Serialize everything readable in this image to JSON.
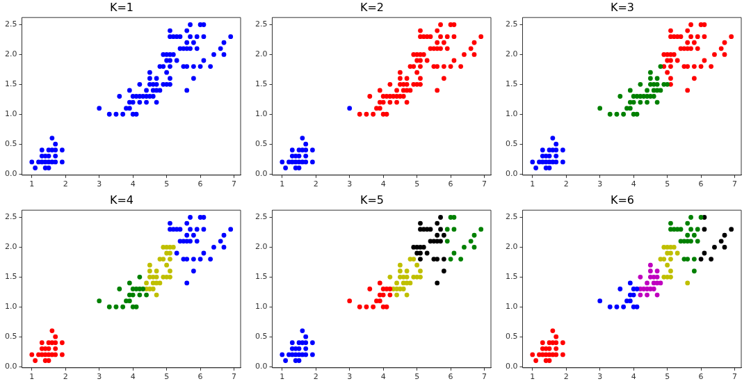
{
  "chart_data": [
    {
      "type": "scatter",
      "title": "K=1",
      "marker": "circle",
      "xlim": [
        0.705,
        7.195
      ],
      "xticks": [
        1,
        2,
        3,
        4,
        5,
        6,
        7
      ],
      "ylim": [
        -0.02,
        2.62
      ],
      "yticks": [
        {
          "value": 0,
          "label": "0.0"
        },
        {
          "value": 0.5,
          "label": "0.5"
        },
        {
          "value": 1,
          "label": "1.0"
        },
        {
          "value": 1.5,
          "label": "1.5"
        },
        {
          "value": 2,
          "label": "2.0"
        },
        {
          "value": 2.5,
          "label": "2.5"
        }
      ],
      "series": [
        {
          "color": "#0000ff",
          "x": [
            1.0,
            1.1,
            1.2,
            1.3,
            1.3,
            1.3,
            1.4,
            1.4,
            1.4,
            1.5,
            1.5,
            1.5,
            1.5,
            1.6,
            1.6,
            1.6,
            1.7,
            1.7,
            1.7,
            1.7,
            1.9,
            1.9,
            3.3,
            3.5,
            3.7,
            4.0,
            4.1,
            3.0,
            3.8,
            3.9,
            3.9,
            4.0,
            4.2,
            4.4,
            4.7,
            3.6,
            4.0,
            4.1,
            4.2,
            4.3,
            4.4,
            4.5,
            4.6,
            3.9,
            4.4,
            4.6,
            4.7,
            4.8,
            5.6,
            4.2,
            4.5,
            4.6,
            4.7,
            4.9,
            5.0,
            5.1,
            4.5,
            4.7,
            5.1,
            5.8,
            4.5,
            5.0,
            4.8,
            4.9,
            5.1,
            5.5,
            5.6,
            5.8,
            6.0,
            6.3,
            5.0,
            5.1,
            5.3,
            6.1,
            4.9,
            5.0,
            5.1,
            5.2,
            6.4,
            6.7,
            5.4,
            5.5,
            5.6,
            5.7,
            5.9,
            6.6,
            5.6,
            5.8,
            6.7,
            5.1,
            5.2,
            5.3,
            5.4,
            5.7,
            5.9,
            6.1,
            6.9,
            5.1,
            5.6,
            5.7,
            6.0,
            6.1
          ],
          "values": [
            0.2,
            0.1,
            0.2,
            0.2,
            0.3,
            0.4,
            0.1,
            0.2,
            0.3,
            0.1,
            0.2,
            0.3,
            0.4,
            0.2,
            0.4,
            0.6,
            0.2,
            0.3,
            0.4,
            0.5,
            0.2,
            0.4,
            1.0,
            1.0,
            1.0,
            1.0,
            1.0,
            1.1,
            1.1,
            1.1,
            1.2,
            1.2,
            1.2,
            1.2,
            1.2,
            1.3,
            1.3,
            1.3,
            1.3,
            1.3,
            1.3,
            1.3,
            1.3,
            1.4,
            1.4,
            1.4,
            1.4,
            1.4,
            1.4,
            1.5,
            1.5,
            1.5,
            1.5,
            1.5,
            1.5,
            1.5,
            1.6,
            1.6,
            1.6,
            1.6,
            1.7,
            1.7,
            1.8,
            1.8,
            1.8,
            1.8,
            1.8,
            1.8,
            1.8,
            1.8,
            1.9,
            1.9,
            1.9,
            1.9,
            2.0,
            2.0,
            2.0,
            2.0,
            2.0,
            2.0,
            2.1,
            2.1,
            2.1,
            2.1,
            2.1,
            2.1,
            2.2,
            2.2,
            2.2,
            2.3,
            2.3,
            2.3,
            2.3,
            2.3,
            2.3,
            2.3,
            2.3,
            2.4,
            2.4,
            2.5,
            2.5,
            2.5
          ]
        }
      ]
    },
    {
      "type": "scatter",
      "title": "K=2",
      "marker": "circle",
      "xlim": [
        0.705,
        7.195
      ],
      "xticks": [
        1,
        2,
        3,
        4,
        5,
        6,
        7
      ],
      "ylim": [
        -0.02,
        2.62
      ],
      "yticks": [
        {
          "value": 0,
          "label": "0.0"
        },
        {
          "value": 0.5,
          "label": "0.5"
        },
        {
          "value": 1,
          "label": "1.0"
        },
        {
          "value": 1.5,
          "label": "1.5"
        },
        {
          "value": 2,
          "label": "2.0"
        },
        {
          "value": 2.5,
          "label": "2.5"
        }
      ],
      "series": [
        {
          "color": "#0000ff",
          "x": [
            1.0,
            1.1,
            1.2,
            1.3,
            1.3,
            1.3,
            1.4,
            1.4,
            1.4,
            1.5,
            1.5,
            1.5,
            1.5,
            1.6,
            1.6,
            1.6,
            1.7,
            1.7,
            1.7,
            1.7,
            1.9,
            1.9,
            3.0
          ],
          "values": [
            0.2,
            0.1,
            0.2,
            0.2,
            0.3,
            0.4,
            0.1,
            0.2,
            0.3,
            0.1,
            0.2,
            0.3,
            0.4,
            0.2,
            0.4,
            0.6,
            0.2,
            0.3,
            0.4,
            0.5,
            0.2,
            0.4,
            1.1
          ]
        },
        {
          "color": "#ff0000",
          "x": [
            3.3,
            3.5,
            3.7,
            4.0,
            4.1,
            3.8,
            3.9,
            3.9,
            4.0,
            4.2,
            4.4,
            4.7,
            3.6,
            4.0,
            4.1,
            4.2,
            4.3,
            4.4,
            4.5,
            4.6,
            3.9,
            4.4,
            4.6,
            4.7,
            4.8,
            5.6,
            4.2,
            4.5,
            4.6,
            4.7,
            4.9,
            5.0,
            5.1,
            4.5,
            4.7,
            5.1,
            5.8,
            4.5,
            5.0,
            4.8,
            4.9,
            5.1,
            5.5,
            5.6,
            5.8,
            6.0,
            6.3,
            5.0,
            5.1,
            5.3,
            6.1,
            4.9,
            5.0,
            5.1,
            5.2,
            6.4,
            6.7,
            5.4,
            5.5,
            5.6,
            5.7,
            5.9,
            6.6,
            5.6,
            5.8,
            6.7,
            5.1,
            5.2,
            5.3,
            5.4,
            5.7,
            5.9,
            6.1,
            6.9,
            5.1,
            5.6,
            5.7,
            6.0,
            6.1
          ],
          "values": [
            1.0,
            1.0,
            1.0,
            1.0,
            1.0,
            1.1,
            1.1,
            1.2,
            1.2,
            1.2,
            1.2,
            1.2,
            1.3,
            1.3,
            1.3,
            1.3,
            1.3,
            1.3,
            1.3,
            1.3,
            1.4,
            1.4,
            1.4,
            1.4,
            1.4,
            1.4,
            1.5,
            1.5,
            1.5,
            1.5,
            1.5,
            1.5,
            1.5,
            1.6,
            1.6,
            1.6,
            1.6,
            1.7,
            1.7,
            1.8,
            1.8,
            1.8,
            1.8,
            1.8,
            1.8,
            1.8,
            1.8,
            1.9,
            1.9,
            1.9,
            1.9,
            2.0,
            2.0,
            2.0,
            2.0,
            2.0,
            2.0,
            2.1,
            2.1,
            2.1,
            2.1,
            2.1,
            2.1,
            2.2,
            2.2,
            2.2,
            2.3,
            2.3,
            2.3,
            2.3,
            2.3,
            2.3,
            2.3,
            2.3,
            2.4,
            2.4,
            2.5,
            2.5,
            2.5
          ]
        }
      ]
    },
    {
      "type": "scatter",
      "title": "K=3",
      "marker": "circle",
      "xlim": [
        0.705,
        7.195
      ],
      "xticks": [
        1,
        2,
        3,
        4,
        5,
        6,
        7
      ],
      "ylim": [
        -0.02,
        2.62
      ],
      "yticks": [
        {
          "value": 0,
          "label": "0.0"
        },
        {
          "value": 0.5,
          "label": "0.5"
        },
        {
          "value": 1,
          "label": "1.0"
        },
        {
          "value": 1.5,
          "label": "1.5"
        },
        {
          "value": 2,
          "label": "2.0"
        },
        {
          "value": 2.5,
          "label": "2.5"
        }
      ],
      "series": [
        {
          "color": "#0000ff",
          "x": [
            1.0,
            1.1,
            1.2,
            1.3,
            1.3,
            1.3,
            1.4,
            1.4,
            1.4,
            1.5,
            1.5,
            1.5,
            1.5,
            1.6,
            1.6,
            1.6,
            1.7,
            1.7,
            1.7,
            1.7,
            1.9,
            1.9
          ],
          "values": [
            0.2,
            0.1,
            0.2,
            0.2,
            0.3,
            0.4,
            0.1,
            0.2,
            0.3,
            0.1,
            0.2,
            0.3,
            0.4,
            0.2,
            0.4,
            0.6,
            0.2,
            0.3,
            0.4,
            0.5,
            0.2,
            0.4
          ]
        },
        {
          "color": "#008000",
          "x": [
            3.3,
            3.5,
            3.7,
            4.0,
            4.1,
            3.0,
            3.8,
            3.9,
            3.9,
            4.0,
            4.2,
            4.4,
            4.7,
            3.6,
            4.0,
            4.1,
            4.2,
            4.3,
            4.4,
            4.5,
            4.6,
            3.9,
            4.4,
            4.6,
            4.7,
            4.8,
            4.2,
            4.5,
            4.6,
            4.7,
            4.9,
            5.0,
            4.5,
            4.7,
            4.5,
            4.8
          ],
          "values": [
            1.0,
            1.0,
            1.0,
            1.0,
            1.0,
            1.1,
            1.1,
            1.1,
            1.2,
            1.2,
            1.2,
            1.2,
            1.2,
            1.3,
            1.3,
            1.3,
            1.3,
            1.3,
            1.3,
            1.3,
            1.3,
            1.4,
            1.4,
            1.4,
            1.4,
            1.4,
            1.5,
            1.5,
            1.5,
            1.5,
            1.5,
            1.5,
            1.6,
            1.6,
            1.7,
            1.8
          ]
        },
        {
          "color": "#ff0000",
          "x": [
            5.6,
            5.1,
            5.1,
            5.8,
            5.0,
            4.9,
            5.1,
            5.5,
            5.6,
            5.8,
            6.0,
            6.3,
            5.0,
            5.1,
            5.3,
            6.1,
            4.9,
            5.0,
            5.1,
            5.2,
            6.4,
            6.7,
            5.4,
            5.5,
            5.6,
            5.7,
            5.9,
            6.6,
            5.6,
            5.8,
            6.7,
            5.1,
            5.2,
            5.3,
            5.4,
            5.7,
            5.9,
            6.1,
            6.9,
            5.1,
            5.6,
            5.7,
            6.0,
            6.1
          ],
          "values": [
            1.4,
            1.5,
            1.6,
            1.6,
            1.7,
            1.8,
            1.8,
            1.8,
            1.8,
            1.8,
            1.8,
            1.8,
            1.9,
            1.9,
            1.9,
            1.9,
            2.0,
            2.0,
            2.0,
            2.0,
            2.0,
            2.0,
            2.1,
            2.1,
            2.1,
            2.1,
            2.1,
            2.1,
            2.2,
            2.2,
            2.2,
            2.3,
            2.3,
            2.3,
            2.3,
            2.3,
            2.3,
            2.3,
            2.3,
            2.4,
            2.4,
            2.5,
            2.5,
            2.5
          ]
        }
      ]
    },
    {
      "type": "scatter",
      "title": "K=4",
      "marker": "circle",
      "xlim": [
        0.705,
        7.195
      ],
      "xticks": [
        1,
        2,
        3,
        4,
        5,
        6,
        7
      ],
      "ylim": [
        -0.02,
        2.62
      ],
      "yticks": [
        {
          "value": 0,
          "label": "0.0"
        },
        {
          "value": 0.5,
          "label": "0.5"
        },
        {
          "value": 1,
          "label": "1.0"
        },
        {
          "value": 1.5,
          "label": "1.5"
        },
        {
          "value": 2,
          "label": "2.0"
        },
        {
          "value": 2.5,
          "label": "2.5"
        }
      ],
      "series": [
        {
          "color": "#ff0000",
          "x": [
            1.0,
            1.1,
            1.2,
            1.3,
            1.3,
            1.3,
            1.4,
            1.4,
            1.4,
            1.5,
            1.5,
            1.5,
            1.5,
            1.6,
            1.6,
            1.6,
            1.7,
            1.7,
            1.7,
            1.7,
            1.9,
            1.9
          ],
          "values": [
            0.2,
            0.1,
            0.2,
            0.2,
            0.3,
            0.4,
            0.1,
            0.2,
            0.3,
            0.1,
            0.2,
            0.3,
            0.4,
            0.2,
            0.4,
            0.6,
            0.2,
            0.3,
            0.4,
            0.5,
            0.2,
            0.4
          ]
        },
        {
          "color": "#008000",
          "x": [
            3.3,
            3.5,
            3.7,
            4.0,
            4.1,
            3.0,
            3.8,
            3.9,
            3.9,
            4.0,
            4.2,
            4.4,
            3.6,
            4.0,
            4.1,
            4.2,
            4.3,
            3.9,
            4.2
          ],
          "values": [
            1.0,
            1.0,
            1.0,
            1.0,
            1.0,
            1.1,
            1.1,
            1.1,
            1.2,
            1.2,
            1.2,
            1.2,
            1.3,
            1.3,
            1.3,
            1.3,
            1.3,
            1.4,
            1.5
          ]
        },
        {
          "color": "#bfbf00",
          "x": [
            4.7,
            4.4,
            4.5,
            4.6,
            4.4,
            4.6,
            4.7,
            4.8,
            4.5,
            4.6,
            4.7,
            4.9,
            5.0,
            5.1,
            4.5,
            4.7,
            5.1,
            4.5,
            5.0,
            4.8,
            4.9,
            5.1,
            5.0,
            5.1,
            4.9,
            5.0,
            5.1,
            5.2
          ],
          "values": [
            1.2,
            1.3,
            1.3,
            1.3,
            1.4,
            1.4,
            1.4,
            1.4,
            1.5,
            1.5,
            1.5,
            1.5,
            1.5,
            1.5,
            1.6,
            1.6,
            1.6,
            1.7,
            1.7,
            1.8,
            1.8,
            1.8,
            1.9,
            1.9,
            2.0,
            2.0,
            2.0,
            2.0
          ]
        },
        {
          "color": "#0000ff",
          "x": [
            5.6,
            5.8,
            5.5,
            5.6,
            5.8,
            6.0,
            6.3,
            5.3,
            6.1,
            6.4,
            6.7,
            5.4,
            5.5,
            5.6,
            5.7,
            5.9,
            6.6,
            5.6,
            5.8,
            6.7,
            5.1,
            5.2,
            5.3,
            5.4,
            5.7,
            5.9,
            6.1,
            6.9,
            5.1,
            5.6,
            5.7,
            6.0,
            6.1
          ],
          "values": [
            1.4,
            1.6,
            1.8,
            1.8,
            1.8,
            1.8,
            1.8,
            1.9,
            1.9,
            2.0,
            2.0,
            2.1,
            2.1,
            2.1,
            2.1,
            2.1,
            2.1,
            2.2,
            2.2,
            2.2,
            2.3,
            2.3,
            2.3,
            2.3,
            2.3,
            2.3,
            2.3,
            2.3,
            2.4,
            2.4,
            2.5,
            2.5,
            2.5
          ]
        }
      ]
    },
    {
      "type": "scatter",
      "title": "K=5",
      "marker": "circle",
      "xlim": [
        0.705,
        7.195
      ],
      "xticks": [
        1,
        2,
        3,
        4,
        5,
        6,
        7
      ],
      "ylim": [
        -0.02,
        2.62
      ],
      "yticks": [
        {
          "value": 0,
          "label": "0.0"
        },
        {
          "value": 0.5,
          "label": "0.5"
        },
        {
          "value": 1,
          "label": "1.0"
        },
        {
          "value": 1.5,
          "label": "1.5"
        },
        {
          "value": 2,
          "label": "2.0"
        },
        {
          "value": 2.5,
          "label": "2.5"
        }
      ],
      "series": [
        {
          "color": "#0000ff",
          "x": [
            1.0,
            1.1,
            1.2,
            1.3,
            1.3,
            1.3,
            1.4,
            1.4,
            1.4,
            1.5,
            1.5,
            1.5,
            1.5,
            1.6,
            1.6,
            1.6,
            1.7,
            1.7,
            1.7,
            1.7,
            1.9,
            1.9
          ],
          "values": [
            0.2,
            0.1,
            0.2,
            0.2,
            0.3,
            0.4,
            0.1,
            0.2,
            0.3,
            0.1,
            0.2,
            0.3,
            0.4,
            0.2,
            0.4,
            0.6,
            0.2,
            0.3,
            0.4,
            0.5,
            0.2,
            0.4
          ]
        },
        {
          "color": "#ff0000",
          "x": [
            3.3,
            3.5,
            3.7,
            4.0,
            4.1,
            3.0,
            3.8,
            3.9,
            3.9,
            4.0,
            4.2,
            3.6,
            4.0,
            4.1,
            4.2,
            3.9
          ],
          "values": [
            1.0,
            1.0,
            1.0,
            1.0,
            1.0,
            1.1,
            1.1,
            1.1,
            1.2,
            1.2,
            1.2,
            1.3,
            1.3,
            1.3,
            1.3,
            1.4
          ]
        },
        {
          "color": "#bfbf00",
          "x": [
            4.4,
            4.7,
            4.3,
            4.4,
            4.5,
            4.6,
            4.4,
            4.6,
            4.7,
            4.8,
            4.2,
            4.5,
            4.6,
            4.7,
            4.9,
            5.0,
            5.1,
            4.5,
            4.7,
            5.1,
            4.5,
            5.0,
            4.8,
            4.9
          ],
          "values": [
            1.2,
            1.2,
            1.3,
            1.3,
            1.3,
            1.3,
            1.4,
            1.4,
            1.4,
            1.4,
            1.5,
            1.5,
            1.5,
            1.5,
            1.5,
            1.5,
            1.5,
            1.6,
            1.6,
            1.6,
            1.7,
            1.7,
            1.8,
            1.8
          ]
        },
        {
          "color": "#000000",
          "x": [
            5.6,
            5.8,
            5.1,
            5.5,
            5.6,
            5.8,
            5.0,
            5.1,
            5.3,
            4.9,
            5.0,
            5.1,
            5.2,
            5.4,
            5.5,
            5.6,
            5.7,
            5.6,
            5.8,
            5.1,
            5.2,
            5.3,
            5.4,
            5.7,
            5.1,
            5.6,
            5.7
          ],
          "values": [
            1.4,
            1.6,
            1.8,
            1.8,
            1.8,
            1.8,
            1.9,
            1.9,
            1.9,
            2.0,
            2.0,
            2.0,
            2.0,
            2.1,
            2.1,
            2.1,
            2.1,
            2.2,
            2.2,
            2.3,
            2.3,
            2.3,
            2.3,
            2.3,
            2.4,
            2.4,
            2.5
          ]
        },
        {
          "color": "#008000",
          "x": [
            6.0,
            6.3,
            6.1,
            6.4,
            6.7,
            5.9,
            6.6,
            6.7,
            5.9,
            6.1,
            6.9,
            6.0,
            6.1
          ],
          "values": [
            1.8,
            1.8,
            1.9,
            2.0,
            2.0,
            2.1,
            2.1,
            2.2,
            2.3,
            2.3,
            2.3,
            2.5,
            2.5
          ]
        }
      ]
    },
    {
      "type": "scatter",
      "title": "K=6",
      "marker": "circle",
      "xlim": [
        0.705,
        7.195
      ],
      "xticks": [
        1,
        2,
        3,
        4,
        5,
        6,
        7
      ],
      "ylim": [
        -0.02,
        2.62
      ],
      "yticks": [
        {
          "value": 0,
          "label": "0.0"
        },
        {
          "value": 0.5,
          "label": "0.5"
        },
        {
          "value": 1,
          "label": "1.0"
        },
        {
          "value": 1.5,
          "label": "1.5"
        },
        {
          "value": 2,
          "label": "2.0"
        },
        {
          "value": 2.5,
          "label": "2.5"
        }
      ],
      "series": [
        {
          "color": "#ff0000",
          "x": [
            1.0,
            1.1,
            1.2,
            1.3,
            1.3,
            1.3,
            1.4,
            1.4,
            1.4,
            1.5,
            1.5,
            1.5,
            1.5,
            1.6,
            1.6,
            1.6,
            1.7,
            1.7,
            1.7,
            1.7,
            1.9,
            1.9
          ],
          "values": [
            0.2,
            0.1,
            0.2,
            0.2,
            0.3,
            0.4,
            0.1,
            0.2,
            0.3,
            0.1,
            0.2,
            0.3,
            0.4,
            0.2,
            0.4,
            0.6,
            0.2,
            0.3,
            0.4,
            0.5,
            0.2,
            0.4
          ]
        },
        {
          "color": "#0000ff",
          "x": [
            3.3,
            3.5,
            3.7,
            4.0,
            4.1,
            3.0,
            3.8,
            3.9,
            3.9,
            4.0,
            3.6,
            4.0,
            4.1,
            3.9
          ],
          "values": [
            1.0,
            1.0,
            1.0,
            1.0,
            1.0,
            1.1,
            1.1,
            1.1,
            1.2,
            1.2,
            1.3,
            1.3,
            1.3,
            1.4
          ]
        },
        {
          "color": "#bf00bf",
          "x": [
            4.2,
            4.4,
            4.7,
            4.2,
            4.3,
            4.4,
            4.5,
            4.6,
            4.4,
            4.6,
            4.7,
            4.8,
            4.2,
            4.5,
            4.6,
            4.7,
            4.5,
            4.7,
            4.5
          ],
          "values": [
            1.2,
            1.2,
            1.2,
            1.3,
            1.3,
            1.3,
            1.3,
            1.3,
            1.4,
            1.4,
            1.4,
            1.4,
            1.5,
            1.5,
            1.5,
            1.5,
            1.6,
            1.6,
            1.7
          ]
        },
        {
          "color": "#bfbf00",
          "x": [
            5.6,
            4.9,
            5.0,
            5.1,
            5.1,
            5.0,
            4.8,
            4.9,
            5.1,
            5.0,
            5.1,
            5.3,
            4.9,
            5.0,
            5.1,
            5.2
          ],
          "values": [
            1.4,
            1.5,
            1.5,
            1.5,
            1.6,
            1.7,
            1.8,
            1.8,
            1.8,
            1.9,
            1.9,
            1.9,
            2.0,
            2.0,
            2.0,
            2.0
          ]
        },
        {
          "color": "#008000",
          "x": [
            5.8,
            5.5,
            5.6,
            5.8,
            5.4,
            5.5,
            5.6,
            5.7,
            5.9,
            5.6,
            5.8,
            5.1,
            5.2,
            5.3,
            5.4,
            5.7,
            5.9,
            5.1,
            5.6,
            5.7,
            6.0
          ],
          "values": [
            1.6,
            1.8,
            1.8,
            1.8,
            2.1,
            2.1,
            2.1,
            2.1,
            2.1,
            2.2,
            2.2,
            2.3,
            2.3,
            2.3,
            2.3,
            2.3,
            2.3,
            2.4,
            2.4,
            2.5,
            2.5
          ]
        },
        {
          "color": "#000000",
          "x": [
            6.0,
            6.3,
            6.1,
            6.4,
            6.7,
            6.6,
            6.7,
            6.1,
            6.9,
            6.1
          ],
          "values": [
            1.8,
            1.8,
            1.9,
            2.0,
            2.0,
            2.1,
            2.2,
            2.3,
            2.3,
            2.5
          ]
        }
      ]
    }
  ]
}
